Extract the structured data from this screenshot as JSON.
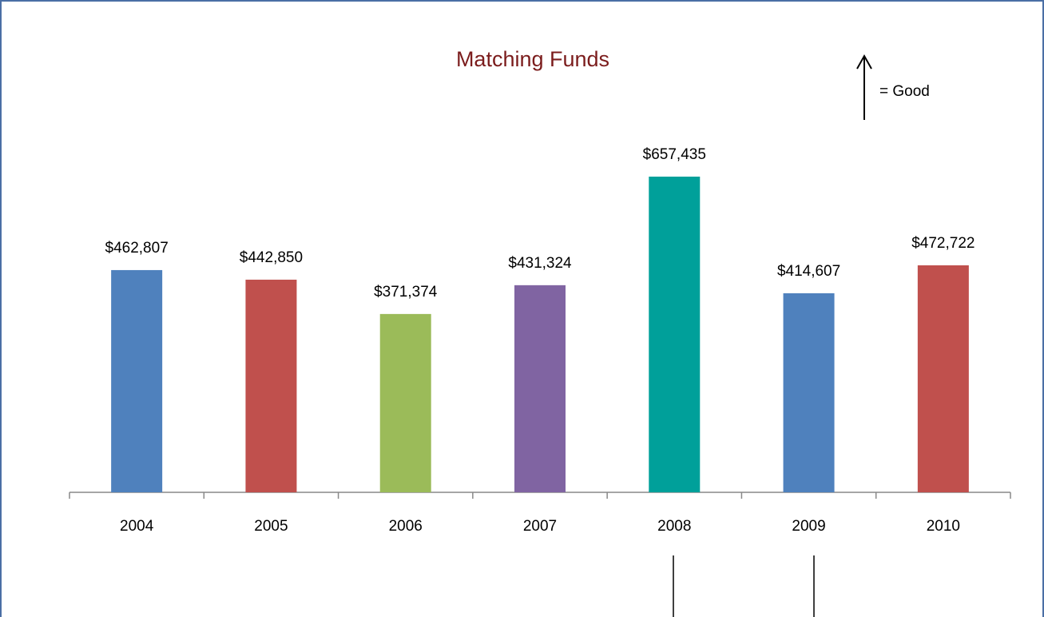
{
  "chart_data": {
    "type": "bar",
    "title": "Matching Funds",
    "annotation": "= Good",
    "categories": [
      "2004",
      "2005",
      "2006",
      "2007",
      "2008",
      "2009",
      "2010"
    ],
    "values": [
      462807,
      442850,
      371374,
      431324,
      657435,
      414607,
      472722
    ],
    "value_labels": [
      "$462,807",
      "$442,850",
      "$371,374",
      "$431,324",
      "$657,435",
      "$414,607",
      "$472,722"
    ],
    "colors": [
      "#4f81bd",
      "#c0504d",
      "#9bbb59",
      "#8064a2",
      "#00a09a",
      "#4f81bd",
      "#c0504d"
    ]
  }
}
